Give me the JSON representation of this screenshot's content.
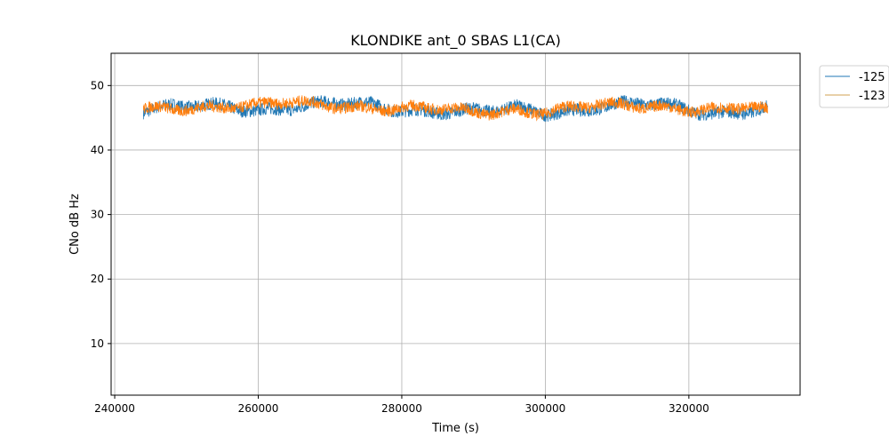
{
  "chart_data": {
    "type": "line",
    "title": "KLONDIKE ant_0 SBAS L1(CA)",
    "xlabel": "Time (s)",
    "ylabel": "CNo dB Hz",
    "xlim": [
      239500,
      335500
    ],
    "ylim": [
      2,
      55
    ],
    "xticks": [
      240000,
      260000,
      280000,
      300000,
      320000
    ],
    "yticks": [
      10,
      20,
      30,
      40,
      50
    ],
    "grid": true,
    "legend_position": "outside-top-right",
    "series": [
      {
        "name": "-125",
        "color": "#1f77b4",
        "x": [
          244000,
          248000,
          252000,
          256000,
          260000,
          264000,
          268000,
          272000,
          276000,
          280000,
          284000,
          288000,
          292000,
          296000,
          300000,
          304000,
          308000,
          312000,
          316000,
          320000,
          324000,
          328000,
          331000
        ],
        "y": [
          46.2,
          46.5,
          46.6,
          46.8,
          46.4,
          46.7,
          46.9,
          47.0,
          46.9,
          46.5,
          46.2,
          45.9,
          45.8,
          46.4,
          46.0,
          46.3,
          46.8,
          46.9,
          46.9,
          46.4,
          45.9,
          46.1,
          46.5
        ],
        "band": 1.0
      },
      {
        "name": "-123",
        "color": "#ff7f0e",
        "x": [
          244000,
          248000,
          252000,
          256000,
          260000,
          264000,
          268000,
          272000,
          276000,
          280000,
          284000,
          288000,
          292000,
          296000,
          300000,
          304000,
          308000,
          312000,
          316000,
          320000,
          324000,
          328000,
          331000
        ],
        "y": [
          46.0,
          46.3,
          46.8,
          47.1,
          46.9,
          47.2,
          46.9,
          46.9,
          46.8,
          46.5,
          46.3,
          45.9,
          45.9,
          46.5,
          46.0,
          46.4,
          46.7,
          46.9,
          47.0,
          46.5,
          46.1,
          46.4,
          46.0
        ],
        "band": 0.9
      }
    ]
  }
}
